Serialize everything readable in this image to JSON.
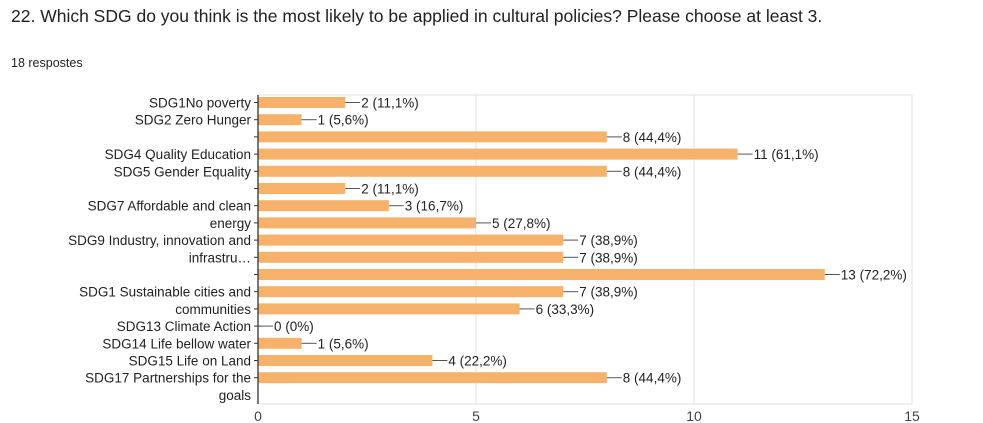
{
  "question": {
    "title": "22. Which SDG do you think is the most likely to be applied in cultural policies? Please choose at least 3.",
    "responses": "18 respostes"
  },
  "colors": {
    "bar": "#f6b26b",
    "grid": "#e0e0e0",
    "axis": "#333333"
  },
  "chart_data": {
    "type": "bar",
    "orientation": "horizontal",
    "title": "22. Which SDG do you think is the most likely to be applied in cultural policies? Please choose at least 3.",
    "xlim": [
      0,
      15
    ],
    "xticks": [
      "0",
      "5",
      "10",
      "15"
    ],
    "grid": true,
    "category_labels": [
      {
        "lines": [
          "SDG1No poverty"
        ],
        "rows": [
          0
        ]
      },
      {
        "lines": [
          "SDG2 Zero Hunger"
        ],
        "rows": [
          1
        ]
      },
      {
        "lines": [
          "SDG4 Quality Education"
        ],
        "rows": [
          3
        ]
      },
      {
        "lines": [
          "SDG5 Gender Equality"
        ],
        "rows": [
          4
        ]
      },
      {
        "lines": [
          "SDG7 Affordable and clean",
          "energy"
        ],
        "rows": [
          6,
          7
        ]
      },
      {
        "lines": [
          "SDG9 Industry, innovation and",
          "infrastru…"
        ],
        "rows": [
          8,
          9
        ]
      },
      {
        "lines": [
          "SDG1 Sustainable cities and",
          "communities"
        ],
        "rows": [
          11,
          12
        ]
      },
      {
        "lines": [
          "SDG13 Climate Action"
        ],
        "rows": [
          13
        ]
      },
      {
        "lines": [
          "SDG14 Life bellow water"
        ],
        "rows": [
          14
        ]
      },
      {
        "lines": [
          "SDG15 Life on Land"
        ],
        "rows": [
          15
        ]
      },
      {
        "lines": [
          "SDG17 Partnerships for the",
          "goals"
        ],
        "rows": [
          16,
          17
        ]
      }
    ],
    "values": [
      2,
      1,
      8,
      11,
      8,
      2,
      3,
      5,
      7,
      7,
      13,
      7,
      6,
      0,
      1,
      4,
      8
    ],
    "value_labels": [
      "2 (11,1%)",
      "1 (5,6%)",
      "8 (44,4%)",
      "11 (61,1%)",
      "8 (44,4%)",
      "2 (11,1%)",
      "3 (16,7%)",
      "5 (27,8%)",
      "7 (38,9%)",
      "7 (38,9%)",
      "13 (72,2%)",
      "7 (38,9%)",
      "6 (33,3%)",
      "0 (0%)",
      "1 (5,6%)",
      "4 (22,2%)",
      "8 (44,4%)"
    ]
  }
}
